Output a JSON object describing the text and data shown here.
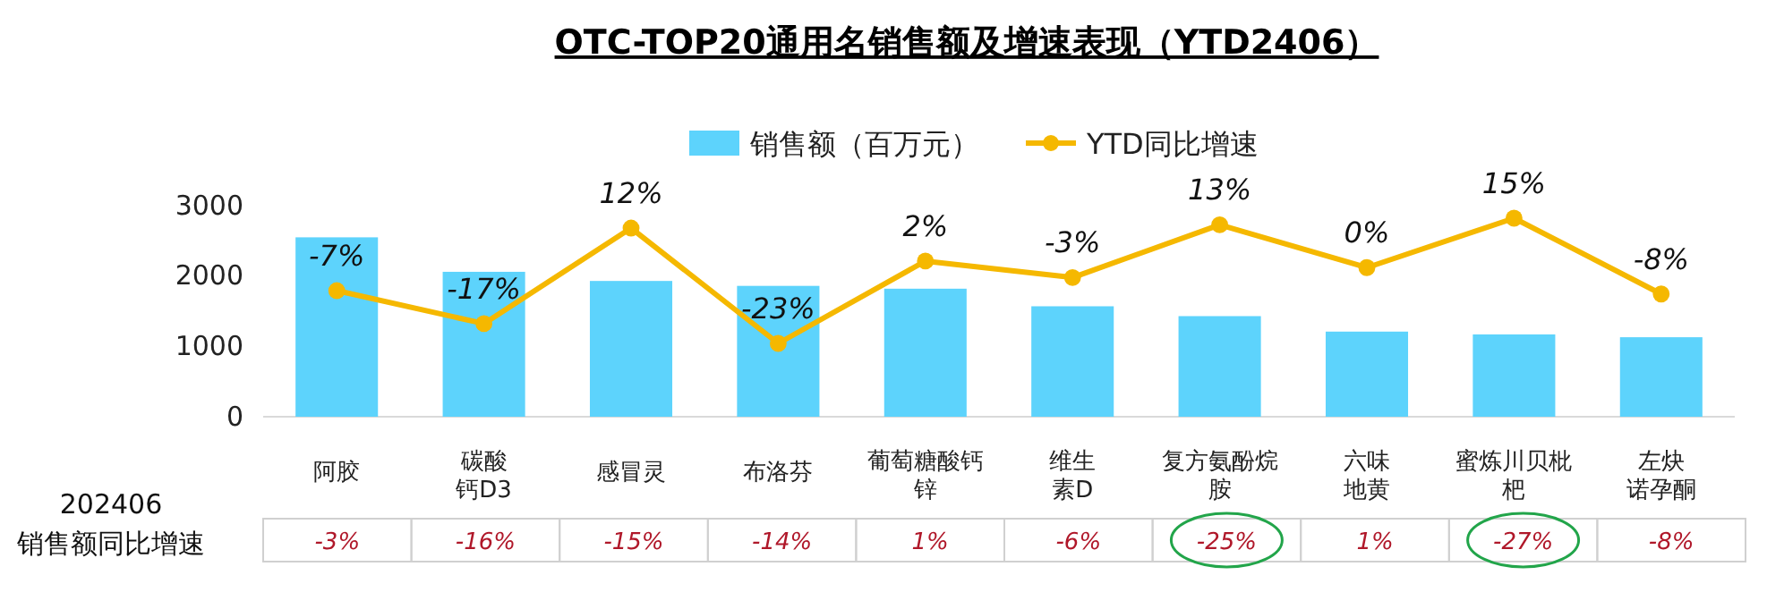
{
  "chart_data": {
    "type": "bar",
    "title": "OTC-TOP20通用名销售额及增速表现（YTD2406）",
    "categories": [
      "阿胶",
      "碳酸钙D3",
      "感冒灵",
      "布洛芬",
      "葡萄糖酸钙锌",
      "维生素D",
      "复方氨酚烷胺",
      "六味地黄",
      "蜜炼川贝枇杷",
      "左炔诺孕酮"
    ],
    "series": [
      {
        "name": "销售额（百万元）",
        "color": "#5dd3fc",
        "values": [
          2550,
          2060,
          1930,
          1860,
          1820,
          1570,
          1430,
          1210,
          1170,
          1130
        ]
      },
      {
        "name": "YTD同比增速",
        "type": "line",
        "axis": "y2",
        "color": "#f5b800",
        "marker": "circle",
        "values": [
          -7,
          -17,
          12,
          -23,
          2,
          -3,
          13,
          0,
          15,
          -8
        ],
        "value_labels": [
          "-7%",
          "-17%",
          "12%",
          "-23%",
          "2%",
          "-3%",
          "13%",
          "0%",
          "15%",
          "-8%"
        ]
      }
    ],
    "ylim": [
      0,
      3000
    ],
    "yticks": [
      0,
      1000,
      2000,
      3000
    ],
    "legend": "top",
    "grid": false,
    "annotations": [
      "202406\n销售额同比增速",
      "-3%",
      "-16%",
      "-15%",
      "-14%",
      "1%",
      "-6%",
      "-25%",
      "1%",
      "-27%",
      "-8%"
    ]
  }
}
